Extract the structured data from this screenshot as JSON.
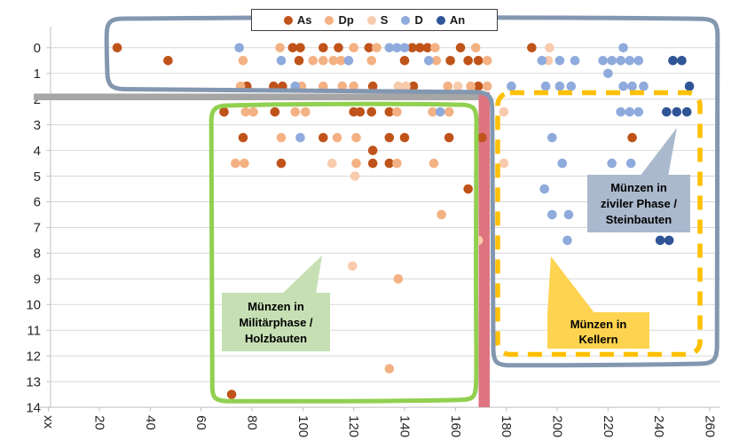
{
  "chart_data": {
    "type": "scatter",
    "title": "",
    "x_axis": {
      "range": [
        0,
        266
      ],
      "ticks": [
        {
          "v": 0,
          "label": "xx"
        },
        {
          "v": 20,
          "label": "20"
        },
        {
          "v": 40,
          "label": "40"
        },
        {
          "v": 60,
          "label": "60"
        },
        {
          "v": 80,
          "label": "80"
        },
        {
          "v": 100,
          "label": "100"
        },
        {
          "v": 120,
          "label": "120"
        },
        {
          "v": 140,
          "label": "140"
        },
        {
          "v": 160,
          "label": "160"
        },
        {
          "v": 180,
          "label": "180"
        },
        {
          "v": 200,
          "label": "200"
        },
        {
          "v": 220,
          "label": "220"
        },
        {
          "v": 240,
          "label": "240"
        },
        {
          "v": 260,
          "label": "260"
        }
      ]
    },
    "y_axis": {
      "range": [
        0,
        14
      ],
      "inverted": true,
      "labels": [
        "0",
        "1",
        "2",
        "3",
        "4",
        "5",
        "6",
        "7",
        "8",
        "9",
        "10",
        "11",
        "12",
        "13",
        "14"
      ]
    },
    "legend": {
      "position": "top-center",
      "entries": [
        {
          "name": "As",
          "color": "#c0531a"
        },
        {
          "name": "Dp",
          "color": "#f4b183"
        },
        {
          "name": "S",
          "color": "#f8cbad"
        },
        {
          "name": "D",
          "color": "#8faadc"
        },
        {
          "name": "An",
          "color": "#2f5597"
        }
      ]
    },
    "series": [
      {
        "name": "As",
        "color": "#c0531a",
        "points": [
          [
            27,
            0
          ],
          [
            96,
            0
          ],
          [
            99,
            0
          ],
          [
            108,
            0
          ],
          [
            114,
            0
          ],
          [
            126,
            0
          ],
          [
            143,
            0
          ],
          [
            146,
            0
          ],
          [
            149,
            0
          ],
          [
            162,
            0
          ],
          [
            190,
            0
          ],
          [
            47,
            0.5
          ],
          [
            98.5,
            0.5
          ],
          [
            140,
            0.5
          ],
          [
            158,
            0.5
          ],
          [
            165,
            0.5
          ],
          [
            169,
            0.5
          ],
          [
            78,
            1.5
          ],
          [
            88.5,
            1.5
          ],
          [
            92,
            1.5
          ],
          [
            127.5,
            1.5
          ],
          [
            143.5,
            1.5
          ],
          [
            169,
            1.5
          ],
          [
            69,
            2.5
          ],
          [
            89,
            2.5
          ],
          [
            120,
            2.5
          ],
          [
            122.5,
            2.5
          ],
          [
            127,
            2.5
          ],
          [
            134,
            2.5
          ],
          [
            76.5,
            3.5
          ],
          [
            108,
            3.5
          ],
          [
            134,
            3.5
          ],
          [
            140,
            3.5
          ],
          [
            157.5,
            3.5
          ],
          [
            170.5,
            3.5
          ],
          [
            229.5,
            3.5
          ],
          [
            127.5,
            4
          ],
          [
            91.5,
            4.5
          ],
          [
            127.5,
            4.5
          ],
          [
            134,
            4.5
          ],
          [
            165,
            5.5
          ],
          [
            72,
            13.5
          ]
        ]
      },
      {
        "name": "Dp",
        "color": "#f4b183",
        "points": [
          [
            91,
            0
          ],
          [
            120,
            0
          ],
          [
            129,
            0
          ],
          [
            152,
            0
          ],
          [
            168,
            0
          ],
          [
            76.5,
            0.5
          ],
          [
            104,
            0.5
          ],
          [
            108,
            0.5
          ],
          [
            112,
            0.5
          ],
          [
            115,
            0.5
          ],
          [
            127,
            0.5
          ],
          [
            152.5,
            0.5
          ],
          [
            172.5,
            0.5
          ],
          [
            75.5,
            1.5
          ],
          [
            99.5,
            1.5
          ],
          [
            108,
            1.5
          ],
          [
            115.5,
            1.5
          ],
          [
            120,
            1.5
          ],
          [
            157,
            1.5
          ],
          [
            166,
            1.5
          ],
          [
            172.5,
            1.5
          ],
          [
            77.5,
            2.5
          ],
          [
            80.5,
            2.5
          ],
          [
            97,
            2.5
          ],
          [
            101,
            2.5
          ],
          [
            137,
            2.5
          ],
          [
            151,
            2.5
          ],
          [
            157.5,
            2.5
          ],
          [
            91.5,
            3.5
          ],
          [
            113.5,
            3.5
          ],
          [
            121,
            3.5
          ],
          [
            73.5,
            4.5
          ],
          [
            77,
            4.5
          ],
          [
            121,
            4.5
          ],
          [
            137,
            4.5
          ],
          [
            151.5,
            4.5
          ],
          [
            154.5,
            6.5
          ],
          [
            137.5,
            9
          ],
          [
            134,
            12.5
          ]
        ]
      },
      {
        "name": "S",
        "color": "#f8cbad",
        "points": [
          [
            197,
            0
          ],
          [
            196.5,
            0.5
          ],
          [
            137.5,
            1.5
          ],
          [
            140.5,
            1.5
          ],
          [
            161,
            1.5
          ],
          [
            179,
            2.5
          ],
          [
            111.5,
            4.5
          ],
          [
            179,
            4.5
          ],
          [
            120.5,
            5
          ],
          [
            169,
            7.5
          ],
          [
            119.5,
            8.5
          ]
        ]
      },
      {
        "name": "D",
        "color": "#8faadc",
        "points": [
          [
            75,
            0
          ],
          [
            134,
            0
          ],
          [
            137,
            0
          ],
          [
            140,
            0
          ],
          [
            226,
            0
          ],
          [
            91.5,
            0.5
          ],
          [
            118,
            0.5
          ],
          [
            149.5,
            0.5
          ],
          [
            194,
            0.5
          ],
          [
            201,
            0.5
          ],
          [
            207,
            0.5
          ],
          [
            218,
            0.5
          ],
          [
            221.5,
            0.5
          ],
          [
            225,
            0.5
          ],
          [
            228.5,
            0.5
          ],
          [
            232,
            0.5
          ],
          [
            220,
            1
          ],
          [
            97,
            1.5
          ],
          [
            182,
            1.5
          ],
          [
            195.5,
            1.5
          ],
          [
            201,
            1.5
          ],
          [
            205.5,
            1.5
          ],
          [
            226,
            1.5
          ],
          [
            229.5,
            1.5
          ],
          [
            234,
            1.5
          ],
          [
            154,
            2.5
          ],
          [
            225,
            2.5
          ],
          [
            228.5,
            2.5
          ],
          [
            232,
            2.5
          ],
          [
            99,
            3.5
          ],
          [
            198,
            3.5
          ],
          [
            202,
            4.5
          ],
          [
            221.5,
            4.5
          ],
          [
            229,
            4.5
          ],
          [
            195,
            5.5
          ],
          [
            198,
            6.5
          ],
          [
            204.5,
            6.5
          ],
          [
            204,
            7.5
          ]
        ]
      },
      {
        "name": "An",
        "color": "#2f5597",
        "points": [
          [
            245.5,
            0.5
          ],
          [
            249,
            0.5
          ],
          [
            252,
            1.5
          ],
          [
            243,
            2.5
          ],
          [
            247,
            2.5
          ],
          [
            251,
            2.5
          ],
          [
            240.5,
            7.5
          ],
          [
            244,
            7.5
          ]
        ]
      }
    ],
    "zones": {
      "gray_bar_color": "#a6a6a6",
      "red_bar_color": "#dd7480",
      "blue_outline_color": "#8497b0",
      "green_outline_color": "#92d050",
      "yellow_dashed_color": "#ffc000",
      "gridline_color": "#d9d9d9",
      "axis_color": "#bfbfbf"
    },
    "annotations": {
      "military": {
        "lines": [
          "Münzen in",
          "Militärphase /",
          "Holzbauten"
        ],
        "fill": "#c6e0b4"
      },
      "cellars": {
        "lines": [
          "Münzen in",
          "Kellern"
        ],
        "fill": "#fed34f"
      },
      "civil": {
        "lines": [
          "Münzen in",
          "ziviler Phase /",
          "Steinbauten"
        ],
        "fill": "#aab9cd"
      }
    }
  }
}
